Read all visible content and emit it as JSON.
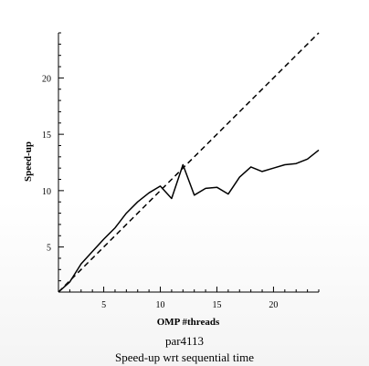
{
  "chart_data": {
    "type": "line",
    "xlabel": "OMP #threads",
    "ylabel": "Speed-up",
    "xlim": [
      1,
      24
    ],
    "ylim": [
      1,
      24
    ],
    "xticks": [
      5,
      10,
      15,
      20
    ],
    "yticks": [
      5,
      10,
      15,
      20
    ],
    "grid": false,
    "series": [
      {
        "style": "solid",
        "x": [
          1,
          2,
          3,
          4,
          5,
          6,
          7,
          8,
          9,
          10,
          11,
          12,
          13,
          14,
          15,
          16,
          17,
          18,
          19,
          20,
          21,
          22,
          23,
          24
        ],
        "values": [
          1.0,
          1.9,
          3.5,
          4.6,
          5.7,
          6.7,
          8.0,
          9.0,
          9.8,
          10.4,
          9.3,
          12.3,
          9.6,
          10.2,
          10.3,
          9.7,
          11.2,
          12.1,
          11.7,
          12.0,
          12.3,
          12.4,
          12.8,
          13.6
        ]
      },
      {
        "style": "dashed",
        "x": [
          1,
          24
        ],
        "values": [
          1,
          24
        ]
      }
    ]
  },
  "caption": {
    "line1": "par4113",
    "line2": "Speed-up wrt sequential time"
  }
}
